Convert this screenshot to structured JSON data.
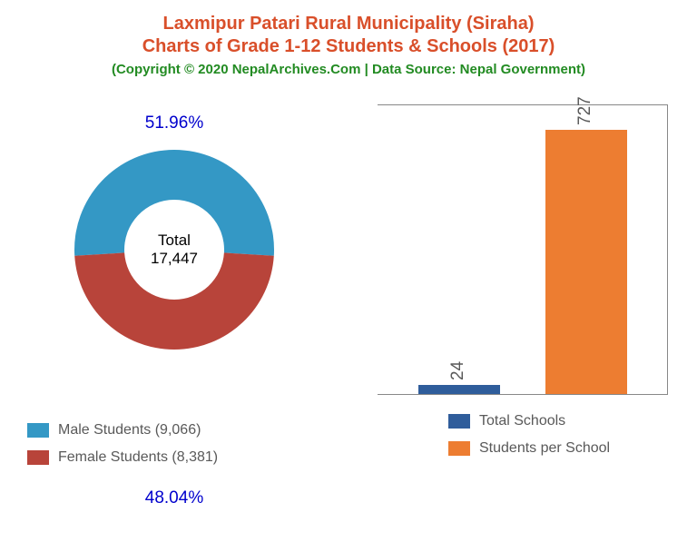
{
  "title": {
    "line1": "Laxmipur Patari Rural Municipality (Siraha)",
    "line2": "Charts of Grade 1-12 Students & Schools (2017)",
    "color": "#d94f2a",
    "fontsize": 20
  },
  "copyright": {
    "text": "(Copyright © 2020 NepalArchives.Com | Data Source: Nepal Government)",
    "color": "#228b22",
    "fontsize": 15
  },
  "donut_chart": {
    "type": "donut",
    "slices": [
      {
        "label": "Male Students",
        "count": "9,066",
        "percent": "51.96%",
        "color": "#3498c5"
      },
      {
        "label": "Female Students",
        "count": "8,381",
        "percent": "48.04%",
        "color": "#b8443a"
      }
    ],
    "center_label": "Total",
    "center_value": "17,447",
    "percent_color": "#0000cd",
    "inner_radius_ratio": 0.5,
    "male_angle_deg": 187.06
  },
  "bar_chart": {
    "type": "bar",
    "bars": [
      {
        "label": "Total Schools",
        "value": 24,
        "color": "#2f5d9b"
      },
      {
        "label": "Students per School",
        "value": 727,
        "color": "#ed7d31"
      }
    ],
    "ylim": [
      0,
      800
    ],
    "border_color": "#888888",
    "value_color": "#595959",
    "value_fontsize": 19
  },
  "legend": {
    "fontsize": 16,
    "text_color": "#595959"
  }
}
